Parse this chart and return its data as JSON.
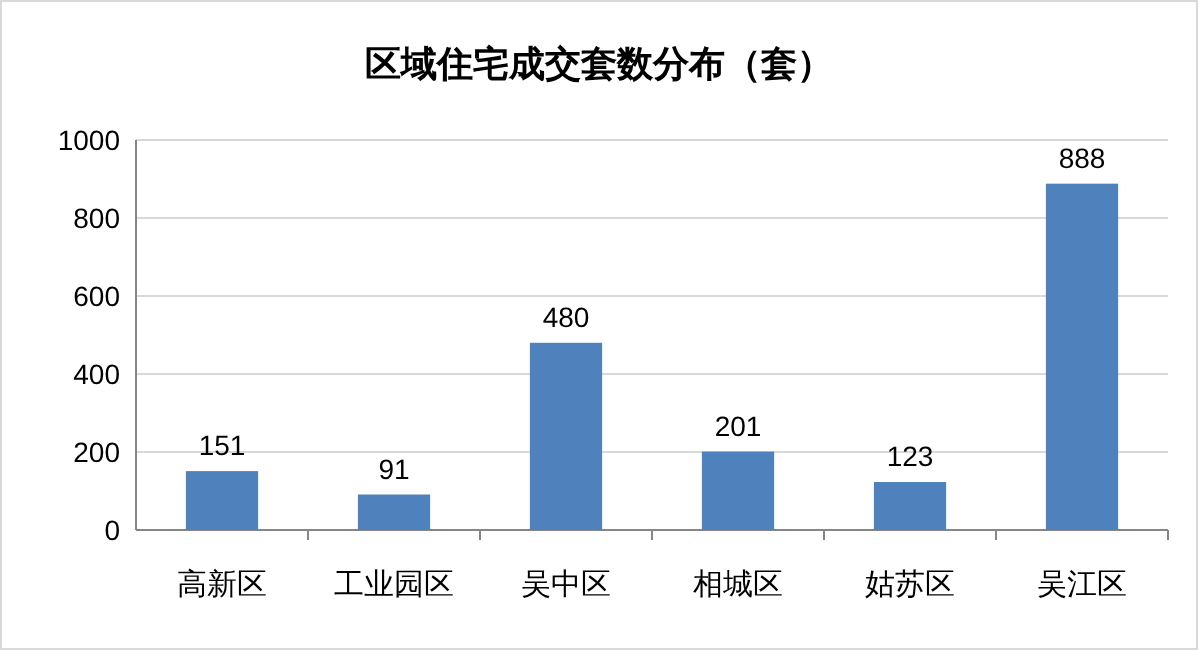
{
  "chart_data": {
    "type": "bar",
    "title": "区域住宅成交套数分布（套）",
    "categories": [
      "高新区",
      "工业园区",
      "吴中区",
      "相城区",
      "姑苏区",
      "吴江区"
    ],
    "values": [
      151,
      91,
      480,
      201,
      123,
      888
    ],
    "color": "#4f81bd",
    "ylim": [
      0,
      1000
    ],
    "yticks": [
      0,
      200,
      400,
      600,
      800,
      1000
    ],
    "grid": "y",
    "data_labels": true
  }
}
